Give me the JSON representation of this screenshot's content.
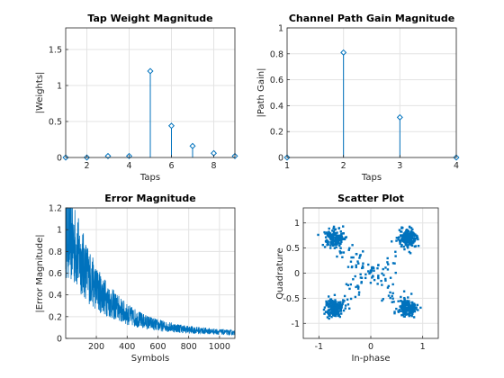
{
  "figure": {
    "background": "#ffffff",
    "series_color": "#0072bd",
    "grid": true
  },
  "chart_data": [
    {
      "id": "tap",
      "type": "stem",
      "title": "Tap Weight Magnitude",
      "xlabel": "Taps",
      "ylabel": "|Weights|",
      "xlim": [
        1,
        9
      ],
      "ylim": [
        0,
        1.8
      ],
      "xticks": [
        2,
        4,
        6,
        8
      ],
      "yticks": [
        0,
        0.5,
        1,
        1.5
      ],
      "ytick_labels": [
        "0",
        "0.5",
        "1",
        "1.5"
      ],
      "x": [
        1,
        2,
        3,
        4,
        5,
        6,
        7,
        8,
        9
      ],
      "y": [
        0.0,
        0.0,
        0.02,
        0.02,
        1.2,
        0.44,
        0.16,
        0.06,
        0.02
      ]
    },
    {
      "id": "path",
      "type": "stem",
      "title": "Channel Path Gain Magnitude",
      "xlabel": "Taps",
      "ylabel": "|Path Gain|",
      "xlim": [
        1,
        4
      ],
      "ylim": [
        0,
        1
      ],
      "xticks": [
        1,
        2,
        3,
        4
      ],
      "yticks": [
        0,
        0.2,
        0.4,
        0.6,
        0.8,
        1
      ],
      "ytick_labels": [
        "0",
        "0.2",
        "0.4",
        "0.6",
        "0.8",
        "1"
      ],
      "x": [
        1,
        2,
        3,
        4
      ],
      "y": [
        0.0,
        0.81,
        0.31,
        0.0
      ]
    },
    {
      "id": "err",
      "type": "line",
      "title": "Error Magnitude",
      "xlabel": "Symbols",
      "ylabel": "|Error Magnitude|",
      "xlim": [
        1,
        1100
      ],
      "ylim": [
        0,
        1.2
      ],
      "xticks": [
        200,
        400,
        600,
        800,
        1000
      ],
      "yticks": [
        0,
        0.2,
        0.4,
        0.6,
        0.8,
        1,
        1.2
      ],
      "ytick_labels": [
        "0",
        "0.2",
        "0.4",
        "0.6",
        "0.8",
        "1",
        "1.2"
      ],
      "n_symbols": 1100,
      "envelope": {
        "x": [
          1,
          50,
          100,
          150,
          200,
          300,
          400,
          500,
          600,
          700,
          800,
          900,
          1000,
          1100
        ],
        "y": [
          1.0,
          0.88,
          0.72,
          0.58,
          0.46,
          0.32,
          0.22,
          0.16,
          0.12,
          0.1,
          0.08,
          0.07,
          0.06,
          0.05
        ]
      }
    },
    {
      "id": "scatter",
      "type": "scatter",
      "title": "Scatter Plot",
      "xlabel": "In-phase",
      "ylabel": "Quadrature",
      "xlim": [
        -1.3,
        1.3
      ],
      "ylim": [
        -1.3,
        1.3
      ],
      "xticks": [
        -1,
        0,
        1
      ],
      "yticks": [
        -1,
        -0.5,
        0,
        0.5,
        1
      ],
      "ytick_labels": [
        "-1",
        "-0.5",
        "0",
        "0.5",
        "1"
      ],
      "constellation_points": [
        [
          0.7,
          0.7
        ],
        [
          -0.7,
          0.7
        ],
        [
          -0.7,
          -0.7
        ],
        [
          0.7,
          -0.7
        ]
      ],
      "cluster_spread": 0.09,
      "n_per_cluster": 160,
      "n_transient": 140
    }
  ]
}
